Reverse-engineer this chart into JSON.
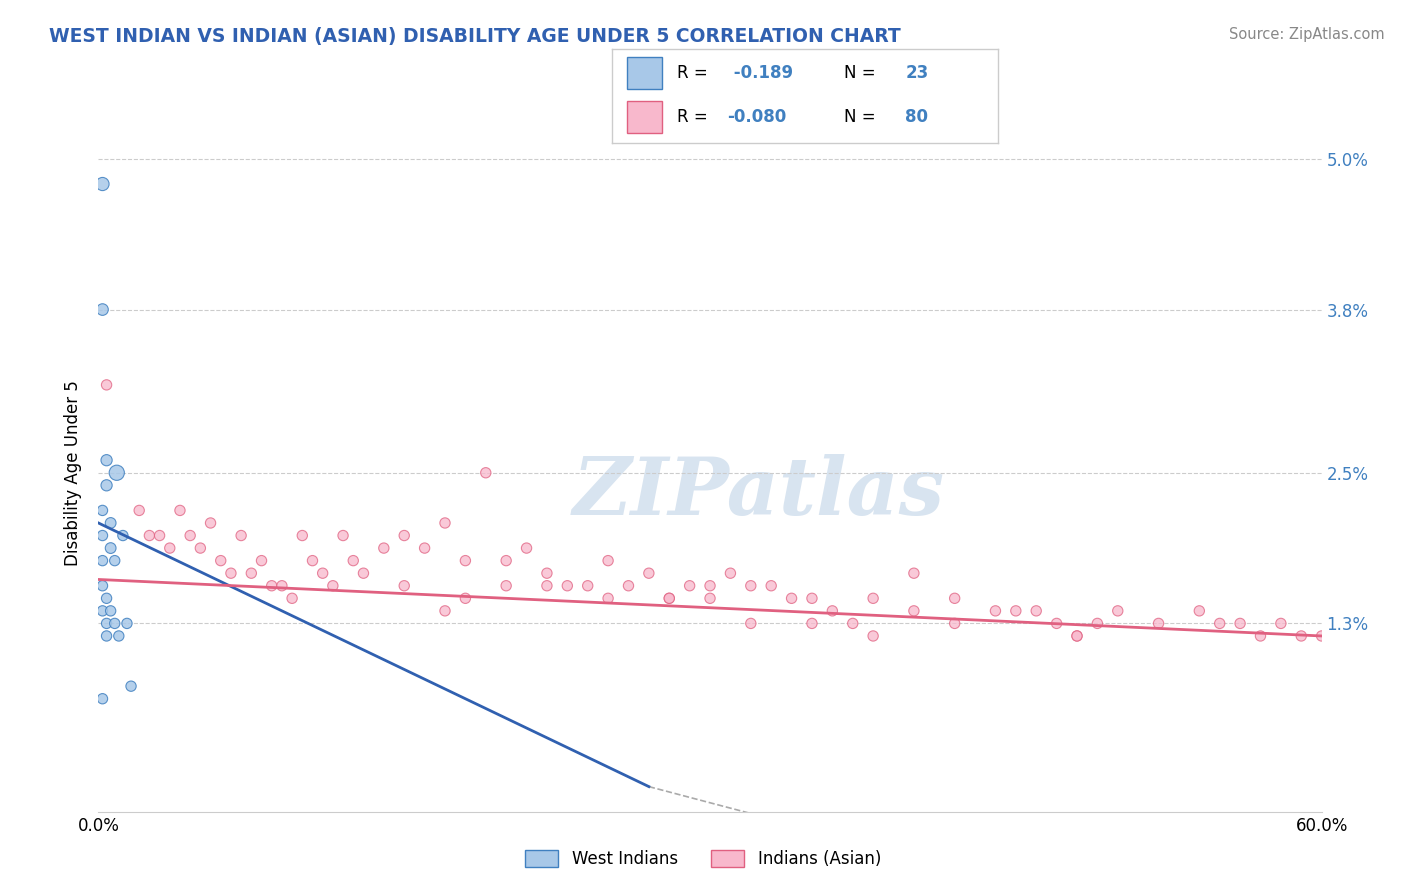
{
  "title": "WEST INDIAN VS INDIAN (ASIAN) DISABILITY AGE UNDER 5 CORRELATION CHART",
  "source": "Source: ZipAtlas.com",
  "ylabel": "Disability Age Under 5",
  "xlim": [
    0.0,
    0.6
  ],
  "ylim": [
    -0.002,
    0.052
  ],
  "ytick_vals": [
    0.013,
    0.025,
    0.038,
    0.05
  ],
  "ytick_labels": [
    "1.3%",
    "2.5%",
    "3.8%",
    "5.0%"
  ],
  "xtick_vals": [
    0.0,
    0.6
  ],
  "xtick_labels": [
    "0.0%",
    "60.0%"
  ],
  "color_blue_fill": "#a8c8e8",
  "color_blue_edge": "#4080c0",
  "color_blue_line": "#3060b0",
  "color_pink_fill": "#f8b8cc",
  "color_pink_edge": "#e06080",
  "color_pink_line": "#e06080",
  "color_dashed": "#aaaaaa",
  "color_grid": "#cccccc",
  "background_color": "#ffffff",
  "watermark_text": "ZIPatlas",
  "watermark_color": "#d8e4f0",
  "legend_r1_text": "R =  -0.189",
  "legend_n1_text": "N = 23",
  "legend_r2_text": "R = -0.080",
  "legend_n2_text": "N = 80",
  "legend_r_color": "#4080c0",
  "legend_n_color": "#4080c0",
  "wi_x": [
    0.002,
    0.002,
    0.002,
    0.002,
    0.002,
    0.002,
    0.002,
    0.002,
    0.004,
    0.004,
    0.004,
    0.004,
    0.004,
    0.006,
    0.006,
    0.006,
    0.008,
    0.008,
    0.009,
    0.01,
    0.012,
    0.014,
    0.016
  ],
  "wi_y": [
    0.048,
    0.038,
    0.022,
    0.02,
    0.018,
    0.016,
    0.014,
    0.007,
    0.026,
    0.024,
    0.015,
    0.013,
    0.012,
    0.021,
    0.019,
    0.014,
    0.018,
    0.013,
    0.025,
    0.012,
    0.02,
    0.013,
    0.008
  ],
  "wi_size": [
    90,
    70,
    55,
    55,
    55,
    55,
    55,
    55,
    65,
    65,
    55,
    55,
    55,
    60,
    60,
    55,
    55,
    55,
    120,
    55,
    55,
    55,
    55
  ],
  "ia_x": [
    0.004,
    0.02,
    0.025,
    0.03,
    0.035,
    0.04,
    0.045,
    0.05,
    0.055,
    0.06,
    0.065,
    0.07,
    0.075,
    0.08,
    0.085,
    0.09,
    0.095,
    0.1,
    0.105,
    0.11,
    0.115,
    0.12,
    0.125,
    0.13,
    0.14,
    0.15,
    0.16,
    0.17,
    0.18,
    0.19,
    0.2,
    0.21,
    0.22,
    0.23,
    0.24,
    0.25,
    0.26,
    0.27,
    0.28,
    0.29,
    0.3,
    0.31,
    0.32,
    0.33,
    0.34,
    0.35,
    0.36,
    0.37,
    0.38,
    0.4,
    0.42,
    0.44,
    0.45,
    0.46,
    0.47,
    0.48,
    0.49,
    0.5,
    0.52,
    0.54,
    0.55,
    0.56,
    0.57,
    0.58,
    0.59,
    0.6,
    0.3,
    0.35,
    0.4,
    0.22,
    0.18,
    0.15,
    0.25,
    0.2,
    0.17,
    0.28,
    0.32,
    0.38,
    0.42,
    0.48
  ],
  "ia_y": [
    0.032,
    0.022,
    0.02,
    0.02,
    0.019,
    0.022,
    0.02,
    0.019,
    0.021,
    0.018,
    0.017,
    0.02,
    0.017,
    0.018,
    0.016,
    0.016,
    0.015,
    0.02,
    0.018,
    0.017,
    0.016,
    0.02,
    0.018,
    0.017,
    0.019,
    0.02,
    0.019,
    0.021,
    0.018,
    0.025,
    0.018,
    0.019,
    0.017,
    0.016,
    0.016,
    0.018,
    0.016,
    0.017,
    0.015,
    0.016,
    0.016,
    0.017,
    0.016,
    0.016,
    0.015,
    0.015,
    0.014,
    0.013,
    0.015,
    0.014,
    0.015,
    0.014,
    0.014,
    0.014,
    0.013,
    0.012,
    0.013,
    0.014,
    0.013,
    0.014,
    0.013,
    0.013,
    0.012,
    0.013,
    0.012,
    0.012,
    0.015,
    0.013,
    0.017,
    0.016,
    0.015,
    0.016,
    0.015,
    0.016,
    0.014,
    0.015,
    0.013,
    0.012,
    0.013,
    0.012
  ],
  "ia_size": [
    55,
    55,
    55,
    55,
    55,
    55,
    55,
    55,
    55,
    55,
    55,
    55,
    55,
    55,
    55,
    55,
    55,
    55,
    55,
    55,
    55,
    55,
    55,
    55,
    55,
    55,
    55,
    55,
    55,
    55,
    55,
    55,
    55,
    55,
    55,
    55,
    55,
    55,
    55,
    55,
    55,
    55,
    55,
    55,
    55,
    55,
    55,
    55,
    55,
    55,
    55,
    55,
    55,
    55,
    55,
    55,
    55,
    55,
    55,
    55,
    55,
    55,
    55,
    55,
    55,
    55,
    55,
    55,
    55,
    55,
    55,
    55,
    55,
    55,
    55,
    55,
    55,
    55,
    55,
    55
  ],
  "blue_line_x0": 0.0,
  "blue_line_y0": 0.021,
  "blue_line_x1": 0.27,
  "blue_line_y1": 0.0,
  "dash_line_x0": 0.27,
  "dash_line_y0": 0.0,
  "dash_line_x1": 0.34,
  "dash_line_y1": -0.003,
  "pink_line_x0": 0.0,
  "pink_line_y0": 0.0165,
  "pink_line_x1": 0.6,
  "pink_line_y1": 0.012
}
